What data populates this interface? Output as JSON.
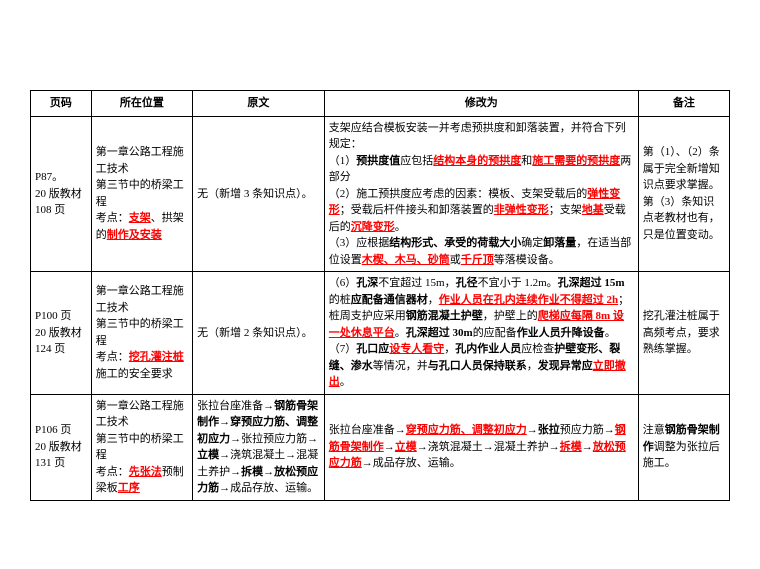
{
  "header": {
    "page": "页码",
    "location": "所在位置",
    "original": "原文",
    "revised": "修改为",
    "note": "备注"
  },
  "rows": [
    {
      "page_1": "P87。",
      "page_2": "20 版教材",
      "page_3": "108 页",
      "loc_1": "第一章公路工程施工技术",
      "loc_2": "第三节中的桥梁工程",
      "loc_3a": "考点：",
      "loc_3b": "支架",
      "loc_3c": "、拱架的",
      "loc_3d": "制作及安装",
      "orig": "无（新增 3 条知识点）。",
      "rev_l1": "支架应结合模板安装一并考虑预拱度和卸落装置，并符合下列规定：",
      "rev_l2a": "（1）",
      "rev_l2b": "预拱度值",
      "rev_l2c": "应包括",
      "rev_l2d": "结构本身的预拱度",
      "rev_l2e": "和",
      "rev_l2f": "施工需要的预拱度",
      "rev_l2g": "两部分",
      "rev_l3a": "（2）施工预拱度应考虑的因素：模板、支架受载后的",
      "rev_l3b": "弹性变形",
      "rev_l3c": "；受载后杆件接头和卸落装置的",
      "rev_l3d": "非弹性变形",
      "rev_l3e": "；支架",
      "rev_l3f": "地基",
      "rev_l3g": "受载后的",
      "rev_l3h": "沉降变形",
      "rev_l3i": "。",
      "rev_l4a": "（3）应根据",
      "rev_l4b": "结构形式、承受的荷载大小",
      "rev_l4c": "确定",
      "rev_l4d": "卸落量",
      "rev_l4e": "，在适当部位设置",
      "rev_l4f": "木楔、木马、砂筒",
      "rev_l4g": "或",
      "rev_l4h": "千斤顶",
      "rev_l4i": "等落模设备。",
      "note": "第（1）、（2）条属于完全新增知识点要求掌握。第（3）条知识点老教材也有，只是位置变动。"
    },
    {
      "page_1": "P100 页",
      "page_2": "20 版教材",
      "page_3": "124 页",
      "loc_1": "第一章公路工程施工技术",
      "loc_2": "第三节中的桥梁工程",
      "loc_3a": "考点：",
      "loc_3b": "挖孔灌注桩",
      "loc_3c": "施工的安全要求",
      "orig": "无（新增 2 条知识点）。",
      "rev_l1a": "（6）",
      "rev_l1b": "孔深",
      "rev_l1c": "不宜超过 15m，",
      "rev_l1d": "孔径",
      "rev_l1e": "不宜小于 1.2m。",
      "rev_l1f": "孔深超过 15m",
      "rev_l1g": "的桩",
      "rev_l1h": "应配备通信器材",
      "rev_l1i": "，",
      "rev_l1j": "作业人员在孔内连续作业不得超过 2h",
      "rev_l1k": "；桩周支护应采用",
      "rev_l1l": "钢筋混凝土护壁",
      "rev_l1m": "，护壁上的",
      "rev_l1n": "爬梯应每隔 8m 设一处休息平台",
      "rev_l1o": "。",
      "rev_l1p": "孔深超过 30m",
      "rev_l1q": "的应配备",
      "rev_l1r": "作业人员升降设备",
      "rev_l1s": "。",
      "rev_l2a": "（7）",
      "rev_l2b": "孔口应",
      "rev_l2c": "设专人看守",
      "rev_l2d": "，",
      "rev_l2e": "孔内作业人员",
      "rev_l2f": "应检查",
      "rev_l2g": "护壁变形、裂缝、渗水",
      "rev_l2h": "等情况，并",
      "rev_l2i": "与孔口人员保持联系",
      "rev_l2j": "，",
      "rev_l2k": "发现异常应",
      "rev_l2l": "立即撤出",
      "rev_l2m": "。",
      "note": "挖孔灌注桩属于高频考点，要求熟练掌握。"
    },
    {
      "page_1": "P106 页",
      "page_2": "20 版教材",
      "page_3": "131 页",
      "loc_1": "第一章公路工程施工技术",
      "loc_2": "第三节中的桥梁工程",
      "loc_3a": "考点：",
      "loc_3b": "先张法",
      "loc_3c": "预制梁板",
      "loc_3d": "工序",
      "orig_a": "张拉台座准备→",
      "orig_b": "钢筋骨架制作",
      "orig_c": "→",
      "orig_d": "穿预应力筋、调整初应力",
      "orig_e": "→张拉预应力筋→",
      "orig_f": "立模",
      "orig_g": "→浇筑混凝土→混凝土养护→",
      "orig_h": "拆模",
      "orig_i": "→",
      "orig_j": "放松预应力筋",
      "orig_k": "→成品存放、运输。",
      "rev_a": "张拉台座准备→",
      "rev_b": "穿预应力筋、调整初应力",
      "rev_c": "→",
      "rev_d": "张拉",
      "rev_e": "预应力筋→",
      "rev_f": "钢筋骨架制作",
      "rev_g": "→",
      "rev_h": "立模",
      "rev_i": "→浇筑混凝土→混凝土养护→",
      "rev_j": "拆模",
      "rev_k": "→",
      "rev_l": "放松预应力筋",
      "rev_m": "→成品存放、运输。",
      "note_a": "注意",
      "note_b": "钢筋骨架制作",
      "note_c": "调整为张拉后施工。"
    }
  ]
}
